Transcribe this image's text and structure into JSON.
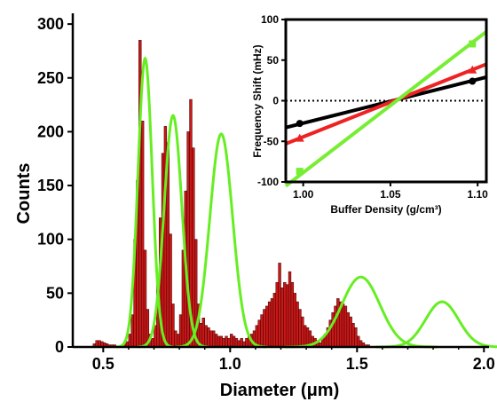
{
  "chart_data": [
    {
      "type": "bar",
      "xlabel": "Diameter (μm)",
      "ylabel": "Counts",
      "xlim": [
        0.38,
        2.02
      ],
      "ylim": [
        0,
        310
      ],
      "xticks": [
        0.5,
        1.0,
        1.5,
        2.0
      ],
      "xtick_labels": [
        "0.5",
        "1.0",
        "1.5",
        "2.0"
      ],
      "yticks": [
        0,
        50,
        100,
        150,
        200,
        250,
        300
      ],
      "ytick_labels": [
        "0",
        "50",
        "100",
        "150",
        "200",
        "250",
        "300"
      ],
      "bar_color": "#c81818",
      "fit_color": "#66ee22",
      "bin_width": 0.01,
      "bins_start": 0.46,
      "counts": [
        3,
        6,
        6,
        5,
        4,
        3,
        2,
        2,
        2,
        1,
        1,
        1,
        3,
        5,
        12,
        30,
        100,
        155,
        285,
        210,
        90,
        35,
        12,
        8,
        20,
        60,
        120,
        180,
        205,
        190,
        105,
        40,
        15,
        12,
        30,
        90,
        145,
        200,
        230,
        185,
        100,
        40,
        22,
        27,
        20,
        18,
        15,
        15,
        12,
        10,
        10,
        8,
        10,
        8,
        12,
        10,
        8,
        6,
        8,
        5,
        8,
        10,
        12,
        15,
        20,
        25,
        30,
        35,
        38,
        42,
        45,
        50,
        60,
        78,
        55,
        60,
        58,
        70,
        60,
        50,
        42,
        35,
        28,
        20,
        18,
        15,
        10,
        8,
        6,
        4,
        8,
        12,
        18,
        25,
        32,
        38,
        45,
        42,
        40,
        38,
        32,
        28,
        22,
        18,
        10,
        6,
        4,
        2,
        2
      ],
      "fits": [
        {
          "center": 0.665,
          "amplitude": 268,
          "sigma": 0.028
        },
        {
          "center": 0.775,
          "amplitude": 215,
          "sigma": 0.035
        },
        {
          "center": 0.965,
          "amplitude": 198,
          "sigma": 0.045
        },
        {
          "center": 1.515,
          "amplitude": 65,
          "sigma": 0.075
        },
        {
          "center": 1.835,
          "amplitude": 42,
          "sigma": 0.065
        }
      ]
    },
    {
      "type": "line",
      "xlabel": "Buffer Density (g/cm³)",
      "ylabel": "Frequency Shift (mHz)",
      "xlim": [
        0.99,
        1.105
      ],
      "ylim": [
        -100,
        100
      ],
      "xticks": [
        1.0,
        1.05,
        1.1
      ],
      "xtick_labels": [
        "1.00",
        "1.05",
        "1.10"
      ],
      "yticks": [
        -100,
        -50,
        0,
        50,
        100
      ],
      "ytick_labels": [
        "-100",
        "-50",
        "0",
        "50",
        "100"
      ],
      "zero_line": "dotted",
      "series": [
        {
          "color": "#000000",
          "marker": "circle",
          "x": [
            0.99,
            1.105
          ],
          "y": [
            -33,
            29
          ],
          "points": [
            [
              0.998,
              -28
            ],
            [
              1.097,
              24
            ]
          ]
        },
        {
          "color": "#ee2222",
          "marker": "triangle",
          "x": [
            0.99,
            1.105
          ],
          "y": [
            -53,
            45
          ],
          "points": [
            [
              0.998,
              -46
            ],
            [
              1.097,
              38
            ]
          ]
        },
        {
          "color": "#77ee33",
          "marker": "square",
          "x": [
            0.99,
            1.105
          ],
          "y": [
            -105,
            85
          ],
          "points": [
            [
              0.998,
              -87
            ],
            [
              1.097,
              70
            ]
          ]
        }
      ]
    }
  ]
}
